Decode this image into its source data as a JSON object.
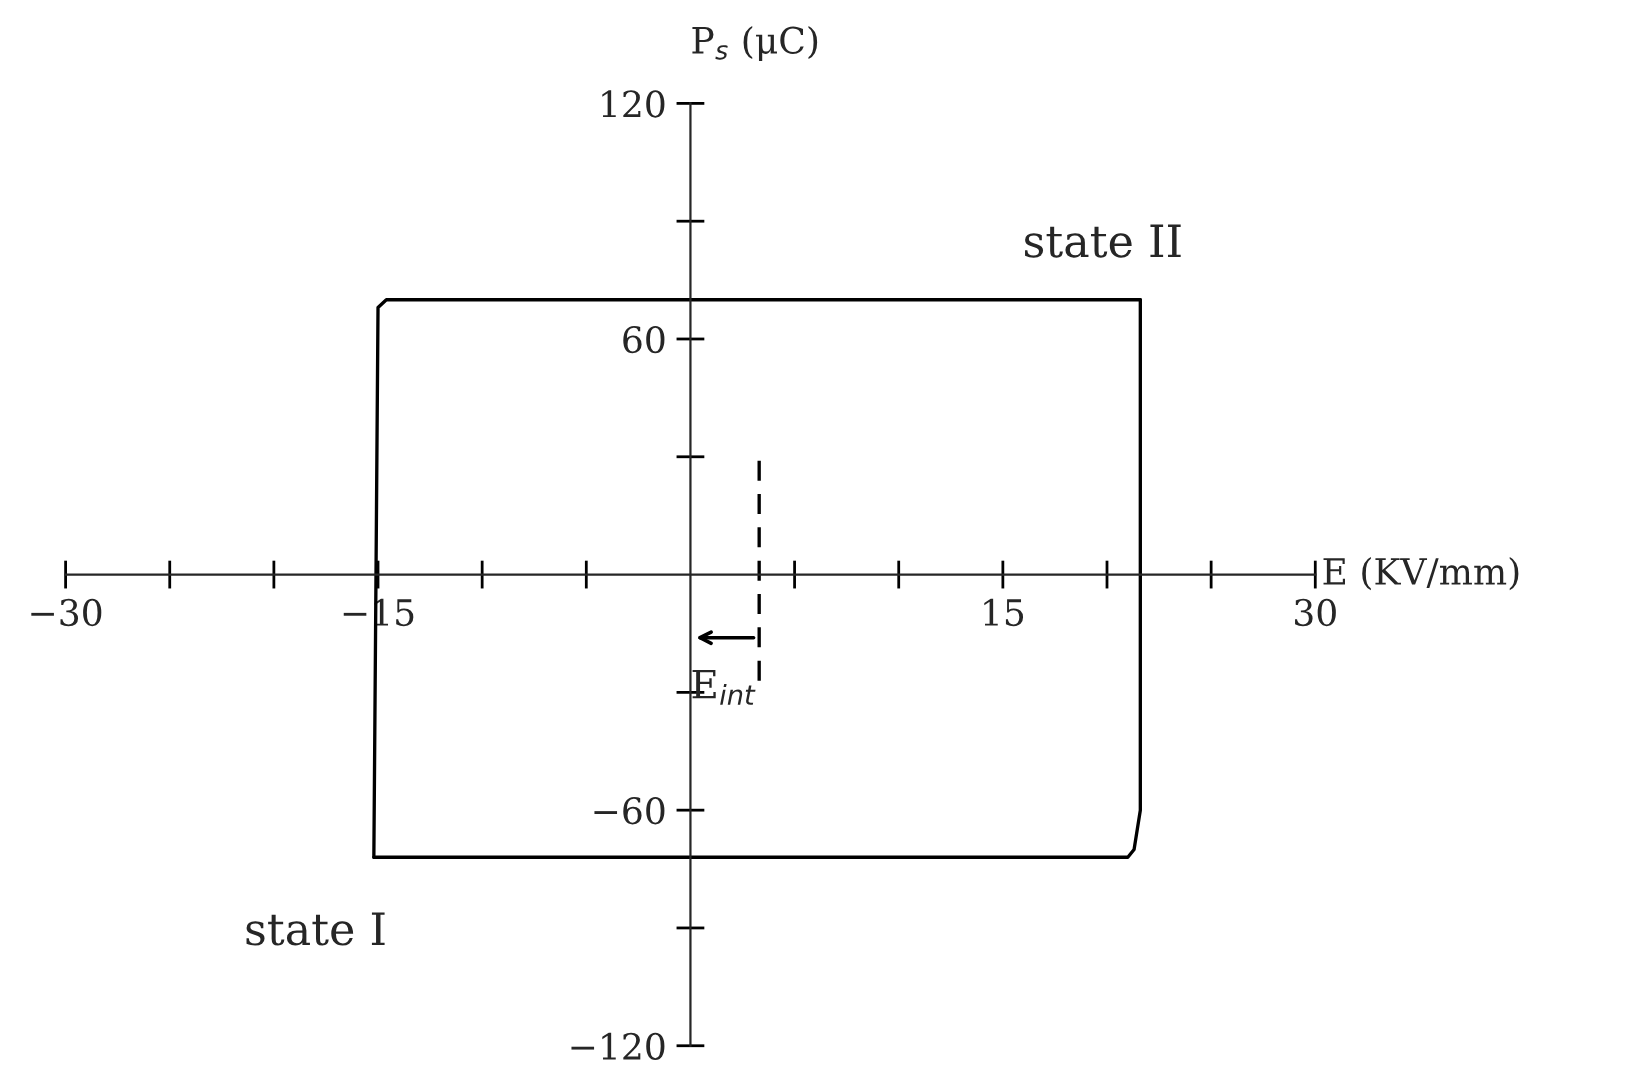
{
  "chart_data": {
    "type": "line",
    "xlabel": "E (KV/mm)",
    "ylabel": "P$_{s}$ (μC)",
    "series": [
      {
        "color": "#000000",
        "line_style": "solid",
        "x": [
          -15.2,
          -15.0,
          -14.6,
          21.6
        ],
        "values": [
          -72,
          68,
          70,
          70
        ]
      },
      {
        "color": "#000000",
        "line_style": "solid",
        "x": [
          21.6,
          21.6,
          21.3,
          21.0,
          -15.2
        ],
        "values": [
          70,
          -60,
          -70,
          -72,
          -72
        ]
      },
      {
        "color": "#000000",
        "line_style": "dashed",
        "x": [
          3.3,
          3.3
        ],
        "values": [
          29,
          -29
        ]
      }
    ],
    "xlim": [
      -30,
      30
    ],
    "ylim": [
      -120,
      120
    ],
    "xticks": [
      -30,
      {
        "value": -25,
        "label": null
      },
      {
        "value": -20,
        "label": null
      },
      -15,
      {
        "value": -10,
        "label": null
      },
      {
        "value": -5,
        "label": null
      },
      {
        "value": 5,
        "label": null
      },
      {
        "value": 10,
        "label": null
      },
      15,
      {
        "value": 20,
        "label": null
      },
      {
        "value": 25,
        "label": null
      },
      30
    ],
    "yticks": [
      -120,
      {
        "value": -90,
        "label": null
      },
      -60,
      {
        "value": -30,
        "label": null
      },
      {
        "value": 30,
        "label": null
      },
      60,
      {
        "value": 90,
        "label": null
      },
      120
    ],
    "annotations": [
      "E$_{int}$",
      "state II",
      "state I"
    ],
    "grid": false,
    "legend": false
  }
}
